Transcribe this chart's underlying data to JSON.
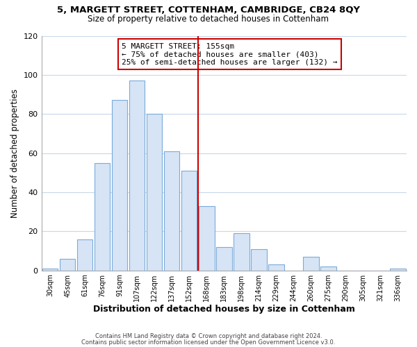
{
  "title1": "5, MARGETT STREET, COTTENHAM, CAMBRIDGE, CB24 8QY",
  "title2": "Size of property relative to detached houses in Cottenham",
  "xlabel": "Distribution of detached houses by size in Cottenham",
  "ylabel": "Number of detached properties",
  "bin_labels": [
    "30sqm",
    "45sqm",
    "61sqm",
    "76sqm",
    "91sqm",
    "107sqm",
    "122sqm",
    "137sqm",
    "152sqm",
    "168sqm",
    "183sqm",
    "198sqm",
    "214sqm",
    "229sqm",
    "244sqm",
    "260sqm",
    "275sqm",
    "290sqm",
    "305sqm",
    "321sqm",
    "336sqm"
  ],
  "bar_heights": [
    1,
    6,
    16,
    55,
    87,
    97,
    80,
    61,
    51,
    33,
    12,
    19,
    11,
    3,
    0,
    7,
    2,
    0,
    0,
    0,
    1
  ],
  "bar_color": "#d6e4f5",
  "bar_edge_color": "#7aabdb",
  "vline_x": 8.5,
  "vline_color": "#cc0000",
  "annotation_title": "5 MARGETT STREET: 155sqm",
  "annotation_line1": "← 75% of detached houses are smaller (403)",
  "annotation_line2": "25% of semi-detached houses are larger (132) →",
  "annotation_box_color": "#ffffff",
  "annotation_box_edge": "#cc0000",
  "ylim": [
    0,
    120
  ],
  "yticks": [
    0,
    20,
    40,
    60,
    80,
    100,
    120
  ],
  "footer1": "Contains HM Land Registry data © Crown copyright and database right 2024.",
  "footer2": "Contains public sector information licensed under the Open Government Licence v3.0.",
  "bg_color": "#ffffff",
  "plot_bg_color": "#ffffff",
  "grid_color": "#c8d8e8"
}
